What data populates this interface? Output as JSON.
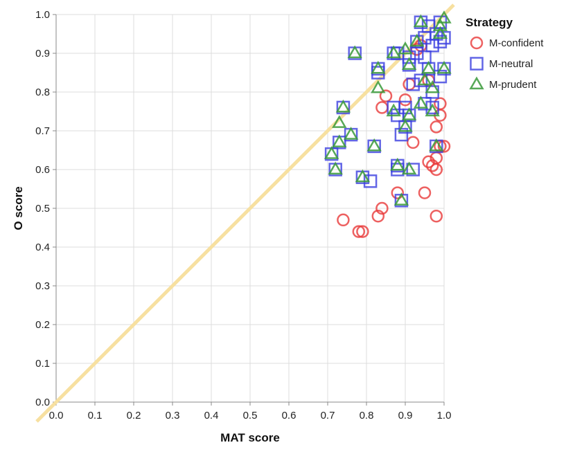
{
  "chart_data": {
    "type": "scatter",
    "xlabel": "MAT score",
    "ylabel": "O score",
    "xlim": [
      0,
      1
    ],
    "ylim": [
      0,
      1
    ],
    "xticks": [
      "0.0",
      "0.1",
      "0.2",
      "0.3",
      "0.4",
      "0.5",
      "0.6",
      "0.7",
      "0.8",
      "0.9",
      "1.0"
    ],
    "yticks": [
      "0.0",
      "0.1",
      "0.2",
      "0.3",
      "0.4",
      "0.5",
      "0.6",
      "0.7",
      "0.8",
      "0.9",
      "1.0"
    ],
    "grid": true,
    "reference_line": {
      "type": "y=x",
      "color": "#f7e0a0"
    },
    "legend": {
      "title": "Strategy",
      "placement": "right"
    },
    "series": [
      {
        "name": "M-confident",
        "marker": "circle",
        "color": "#e8393a",
        "points": [
          [
            0.74,
            0.47
          ],
          [
            0.78,
            0.44
          ],
          [
            0.79,
            0.44
          ],
          [
            0.83,
            0.48
          ],
          [
            0.84,
            0.5
          ],
          [
            0.84,
            0.76
          ],
          [
            0.85,
            0.79
          ],
          [
            0.88,
            0.54
          ],
          [
            0.9,
            0.78
          ],
          [
            0.91,
            0.82
          ],
          [
            0.92,
            0.67
          ],
          [
            0.95,
            0.54
          ],
          [
            0.96,
            0.62
          ],
          [
            0.97,
            0.61
          ],
          [
            0.98,
            0.6
          ],
          [
            0.98,
            0.48
          ],
          [
            0.98,
            0.63
          ],
          [
            0.98,
            0.71
          ],
          [
            0.99,
            0.66
          ],
          [
            0.99,
            0.74
          ],
          [
            0.99,
            0.77
          ],
          [
            1.0,
            0.66
          ],
          [
            0.93,
            0.91
          ],
          [
            0.96,
            0.83
          ],
          [
            0.94,
            0.92
          ]
        ]
      },
      {
        "name": "M-neutral",
        "marker": "square",
        "color": "#3b3fe0",
        "points": [
          [
            0.71,
            0.64
          ],
          [
            0.72,
            0.6
          ],
          [
            0.73,
            0.67
          ],
          [
            0.74,
            0.76
          ],
          [
            0.76,
            0.69
          ],
          [
            0.77,
            0.9
          ],
          [
            0.79,
            0.58
          ],
          [
            0.81,
            0.57
          ],
          [
            0.82,
            0.66
          ],
          [
            0.83,
            0.86
          ],
          [
            0.83,
            0.85
          ],
          [
            0.87,
            0.9
          ],
          [
            0.87,
            0.76
          ],
          [
            0.88,
            0.74
          ],
          [
            0.88,
            0.61
          ],
          [
            0.88,
            0.6
          ],
          [
            0.89,
            0.52
          ],
          [
            0.89,
            0.69
          ],
          [
            0.9,
            0.71
          ],
          [
            0.9,
            0.76
          ],
          [
            0.91,
            0.74
          ],
          [
            0.91,
            0.87
          ],
          [
            0.92,
            0.6
          ],
          [
            0.92,
            0.82
          ],
          [
            0.93,
            0.93
          ],
          [
            0.93,
            0.9
          ],
          [
            0.94,
            0.98
          ],
          [
            0.94,
            0.83
          ],
          [
            0.95,
            0.77
          ],
          [
            0.95,
            0.89
          ],
          [
            0.96,
            0.86
          ],
          [
            0.96,
            0.97
          ],
          [
            0.97,
            0.8
          ],
          [
            0.97,
            0.92
          ],
          [
            0.97,
            0.76
          ],
          [
            0.98,
            0.66
          ],
          [
            0.98,
            0.95
          ],
          [
            0.99,
            0.93
          ],
          [
            0.99,
            0.98
          ],
          [
            1.0,
            0.94
          ],
          [
            1.0,
            0.86
          ],
          [
            0.99,
            0.84
          ],
          [
            0.88,
            0.9
          ],
          [
            0.91,
            0.89
          ],
          [
            0.95,
            0.94
          ]
        ]
      },
      {
        "name": "M-prudent",
        "marker": "triangle",
        "color": "#3a9a3a",
        "points": [
          [
            0.71,
            0.64
          ],
          [
            0.72,
            0.6
          ],
          [
            0.73,
            0.67
          ],
          [
            0.74,
            0.76
          ],
          [
            0.73,
            0.72
          ],
          [
            0.76,
            0.69
          ],
          [
            0.77,
            0.9
          ],
          [
            0.79,
            0.58
          ],
          [
            0.82,
            0.66
          ],
          [
            0.83,
            0.81
          ],
          [
            0.83,
            0.86
          ],
          [
            0.87,
            0.9
          ],
          [
            0.87,
            0.75
          ],
          [
            0.88,
            0.61
          ],
          [
            0.89,
            0.52
          ],
          [
            0.9,
            0.91
          ],
          [
            0.91,
            0.87
          ],
          [
            0.91,
            0.6
          ],
          [
            0.91,
            0.74
          ],
          [
            0.93,
            0.93
          ],
          [
            0.94,
            0.98
          ],
          [
            0.95,
            0.83
          ],
          [
            0.96,
            0.86
          ],
          [
            0.97,
            0.81
          ],
          [
            0.97,
            0.75
          ],
          [
            0.98,
            0.66
          ],
          [
            0.99,
            0.95
          ],
          [
            1.0,
            0.99
          ],
          [
            1.0,
            0.86
          ],
          [
            0.99,
            0.97
          ],
          [
            0.94,
            0.77
          ],
          [
            0.9,
            0.71
          ]
        ]
      }
    ]
  }
}
